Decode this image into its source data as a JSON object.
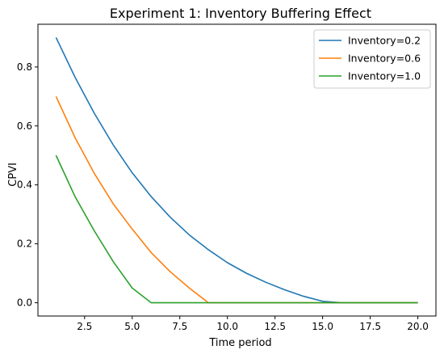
{
  "chart_data": {
    "type": "line",
    "title": "Experiment 1: Inventory Buffering Effect",
    "xlabel": "Time period",
    "ylabel": "CPVI",
    "xlim": [
      0.05,
      20.95
    ],
    "ylim": [
      -0.045,
      0.945
    ],
    "xticks": [
      2.5,
      5.0,
      7.5,
      10.0,
      12.5,
      15.0,
      17.5,
      20.0
    ],
    "xtick_labels": [
      "2.5",
      "5.0",
      "7.5",
      "10.0",
      "12.5",
      "15.0",
      "17.5",
      "20.0"
    ],
    "yticks": [
      0.0,
      0.2,
      0.4,
      0.6,
      0.8
    ],
    "ytick_labels": [
      "0.0",
      "0.2",
      "0.4",
      "0.6",
      "0.8"
    ],
    "grid": false,
    "legend_position": "top-right",
    "x": [
      1,
      2,
      3,
      4,
      5,
      6,
      7,
      8,
      9,
      10,
      11,
      12,
      13,
      14,
      15,
      16,
      17,
      18,
      19,
      20
    ],
    "series": [
      {
        "name": "Inventory=0.2",
        "color": "#1f77b4",
        "values": [
          0.9,
          0.765,
          0.644,
          0.536,
          0.441,
          0.36,
          0.29,
          0.23,
          0.18,
          0.136,
          0.1,
          0.07,
          0.044,
          0.022,
          0.005,
          0.0,
          0.0,
          0.0,
          0.0,
          0.0
        ]
      },
      {
        "name": "Inventory=0.6",
        "color": "#ff7f0e",
        "values": [
          0.7,
          0.56,
          0.44,
          0.336,
          0.25,
          0.17,
          0.105,
          0.05,
          0.0,
          0.0,
          0.0,
          0.0,
          0.0,
          0.0,
          0.0,
          0.0,
          0.0,
          0.0,
          0.0,
          0.0
        ]
      },
      {
        "name": "Inventory=1.0",
        "color": "#2ca02c",
        "values": [
          0.5,
          0.36,
          0.245,
          0.14,
          0.05,
          0.0,
          0.0,
          0.0,
          0.0,
          0.0,
          0.0,
          0.0,
          0.0,
          0.0,
          0.0,
          0.0,
          0.0,
          0.0,
          0.0,
          0.0
        ]
      }
    ]
  }
}
